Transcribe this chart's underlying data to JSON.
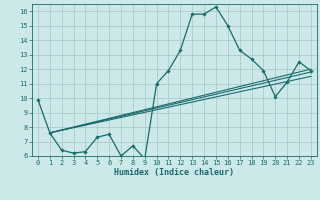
{
  "title": "",
  "xlabel": "Humidex (Indice chaleur)",
  "ylabel": "",
  "background_color": "#cce8e8",
  "grid_color": "#aacccc",
  "line_color": "#1a6b6b",
  "xlim": [
    -0.5,
    23.5
  ],
  "ylim": [
    6.0,
    16.5
  ],
  "yticks": [
    6,
    7,
    8,
    9,
    10,
    11,
    12,
    13,
    14,
    15,
    16
  ],
  "xticks": [
    0,
    1,
    2,
    3,
    4,
    5,
    6,
    7,
    8,
    9,
    10,
    11,
    12,
    13,
    14,
    15,
    16,
    17,
    18,
    19,
    20,
    21,
    22,
    23
  ],
  "main_line_x": [
    0,
    1,
    2,
    3,
    4,
    5,
    6,
    7,
    8,
    9,
    10,
    11,
    12,
    13,
    14,
    15,
    16,
    17,
    18,
    19,
    20,
    21,
    22,
    23
  ],
  "main_line_y": [
    9.9,
    7.6,
    6.4,
    6.2,
    6.3,
    7.3,
    7.5,
    6.0,
    6.7,
    5.8,
    11.0,
    11.9,
    13.3,
    15.8,
    15.8,
    16.3,
    15.0,
    13.3,
    12.7,
    11.9,
    10.1,
    11.1,
    12.5,
    11.9
  ],
  "line1_x": [
    1,
    23
  ],
  "line1_y": [
    7.6,
    11.8
  ],
  "line2_x": [
    1,
    23
  ],
  "line2_y": [
    7.6,
    11.5
  ],
  "line3_x": [
    1,
    23
  ],
  "line3_y": [
    7.6,
    12.0
  ]
}
